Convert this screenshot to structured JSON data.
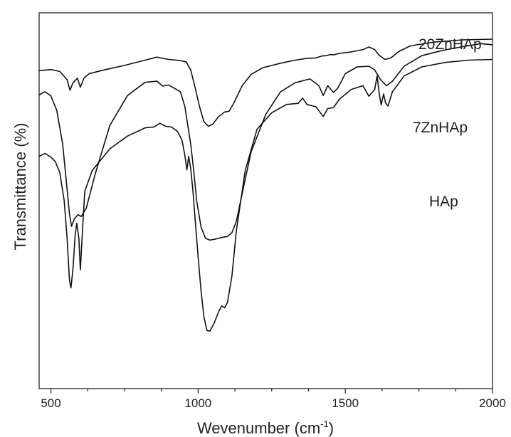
{
  "chart_data": {
    "type": "line",
    "title": "",
    "xlabel": "Wevenumber",
    "xlabel_unit_base": "(cm",
    "xlabel_unit_sup": "-1",
    "xlabel_unit_close": ")",
    "ylabel": "Transmittance (%)",
    "xlim": [
      460,
      2000
    ],
    "ylim": [
      0,
      100
    ],
    "x_ticks": [
      500,
      1000,
      1500,
      2000
    ],
    "x_tick_labels": [
      "500",
      "1000",
      "1500",
      "2000"
    ],
    "y_ticks_shown": false,
    "grid": false,
    "series": [
      {
        "name": "20ZnHAp",
        "x": [
          460,
          500,
          530,
          555,
          565,
          575,
          590,
          600,
          612,
          630,
          680,
          750,
          820,
          860,
          900,
          940,
          960,
          975,
          990,
          1005,
          1020,
          1035,
          1050,
          1070,
          1090,
          1105,
          1120,
          1150,
          1180,
          1220,
          1280,
          1330,
          1370,
          1400,
          1420,
          1435,
          1450,
          1460,
          1480,
          1520,
          1560,
          1580,
          1600,
          1615,
          1635,
          1655,
          1680,
          1720,
          1800,
          1900,
          2000
        ],
        "y": [
          84.6,
          84.9,
          84.4,
          82.2,
          79.4,
          81.4,
          82.6,
          80.2,
          82.6,
          83.8,
          84.8,
          86.0,
          87.4,
          88.2,
          87.6,
          87.3,
          86.9,
          84.8,
          80.0,
          75.0,
          71.0,
          69.8,
          70.4,
          72.4,
          73.6,
          73.8,
          75.8,
          80.6,
          83.6,
          85.4,
          86.6,
          87.4,
          87.9,
          88.0,
          88.5,
          88.6,
          88.9,
          88.8,
          89.2,
          89.6,
          90.2,
          90.9,
          90.2,
          88.7,
          87.6,
          88.0,
          89.6,
          91.2,
          92.2,
          92.8,
          93.0
        ]
      },
      {
        "name": "7ZnHAp",
        "x": [
          460,
          480,
          500,
          520,
          540,
          555,
          563,
          570,
          580,
          592,
          603,
          620,
          650,
          700,
          760,
          820,
          860,
          880,
          900,
          940,
          955,
          965,
          975,
          985,
          995,
          1010,
          1025,
          1040,
          1060,
          1080,
          1100,
          1115,
          1130,
          1150,
          1180,
          1230,
          1280,
          1330,
          1380,
          1410,
          1425,
          1440,
          1460,
          1475,
          1500,
          1540,
          1580,
          1600,
          1620,
          1640,
          1660,
          1700,
          1760,
          1830,
          1900,
          1960,
          2000
        ],
        "y": [
          78.2,
          79.0,
          77.9,
          74.0,
          65.0,
          53.0,
          46.5,
          43.2,
          45.2,
          46.3,
          45.8,
          48.0,
          57.0,
          70.0,
          78.0,
          81.5,
          81.8,
          80.5,
          80.8,
          79.0,
          75.0,
          70.0,
          65.0,
          58.0,
          50.0,
          43.0,
          40.0,
          39.5,
          39.8,
          40.2,
          40.5,
          41.5,
          44.5,
          52.0,
          63.0,
          73.0,
          79.0,
          81.4,
          82.4,
          80.6,
          78.0,
          80.6,
          78.8,
          80.0,
          83.8,
          85.6,
          85.8,
          84.8,
          82.2,
          80.6,
          81.8,
          85.8,
          88.6,
          90.0,
          91.0,
          91.8,
          91.5
        ]
      },
      {
        "name": "HAp",
        "x": [
          460,
          480,
          500,
          515,
          530,
          545,
          555,
          563,
          568,
          575,
          582,
          588,
          595,
          600,
          605,
          615,
          640,
          700,
          760,
          820,
          850,
          870,
          890,
          910,
          930,
          945,
          955,
          962,
          968,
          975,
          982,
          990,
          1000,
          1010,
          1020,
          1030,
          1040,
          1055,
          1070,
          1080,
          1090,
          1100,
          1115,
          1130,
          1160,
          1200,
          1250,
          1300,
          1340,
          1355,
          1370,
          1400,
          1425,
          1440,
          1460,
          1480,
          1520,
          1560,
          1580,
          1600,
          1608,
          1615,
          1622,
          1630,
          1637,
          1645,
          1660,
          1700,
          1760,
          1840,
          1920,
          2000
        ],
        "y": [
          61.8,
          62.6,
          61.6,
          60.4,
          57.5,
          50.0,
          40.0,
          28.8,
          26.8,
          32.0,
          40.6,
          44.0,
          40.0,
          31.6,
          39.0,
          52.5,
          58.0,
          63.8,
          67.2,
          69.4,
          69.6,
          70.6,
          69.8,
          69.6,
          68.4,
          66.2,
          62.0,
          58.2,
          61.8,
          58.5,
          53.0,
          45.0,
          35.0,
          26.0,
          19.0,
          15.5,
          15.3,
          17.5,
          20.5,
          22.0,
          21.5,
          23.0,
          30.0,
          42.0,
          58.0,
          69.0,
          73.4,
          75.6,
          75.9,
          77.3,
          75.6,
          75.0,
          72.4,
          74.5,
          74.8,
          77.0,
          79.6,
          80.6,
          77.8,
          79.6,
          83.2,
          78.6,
          75.5,
          78.4,
          76.0,
          75.2,
          79.0,
          83.2,
          85.6,
          86.8,
          87.4,
          87.6
        ]
      }
    ],
    "colors": {
      "line": "#111111",
      "axis": "#222222"
    }
  }
}
